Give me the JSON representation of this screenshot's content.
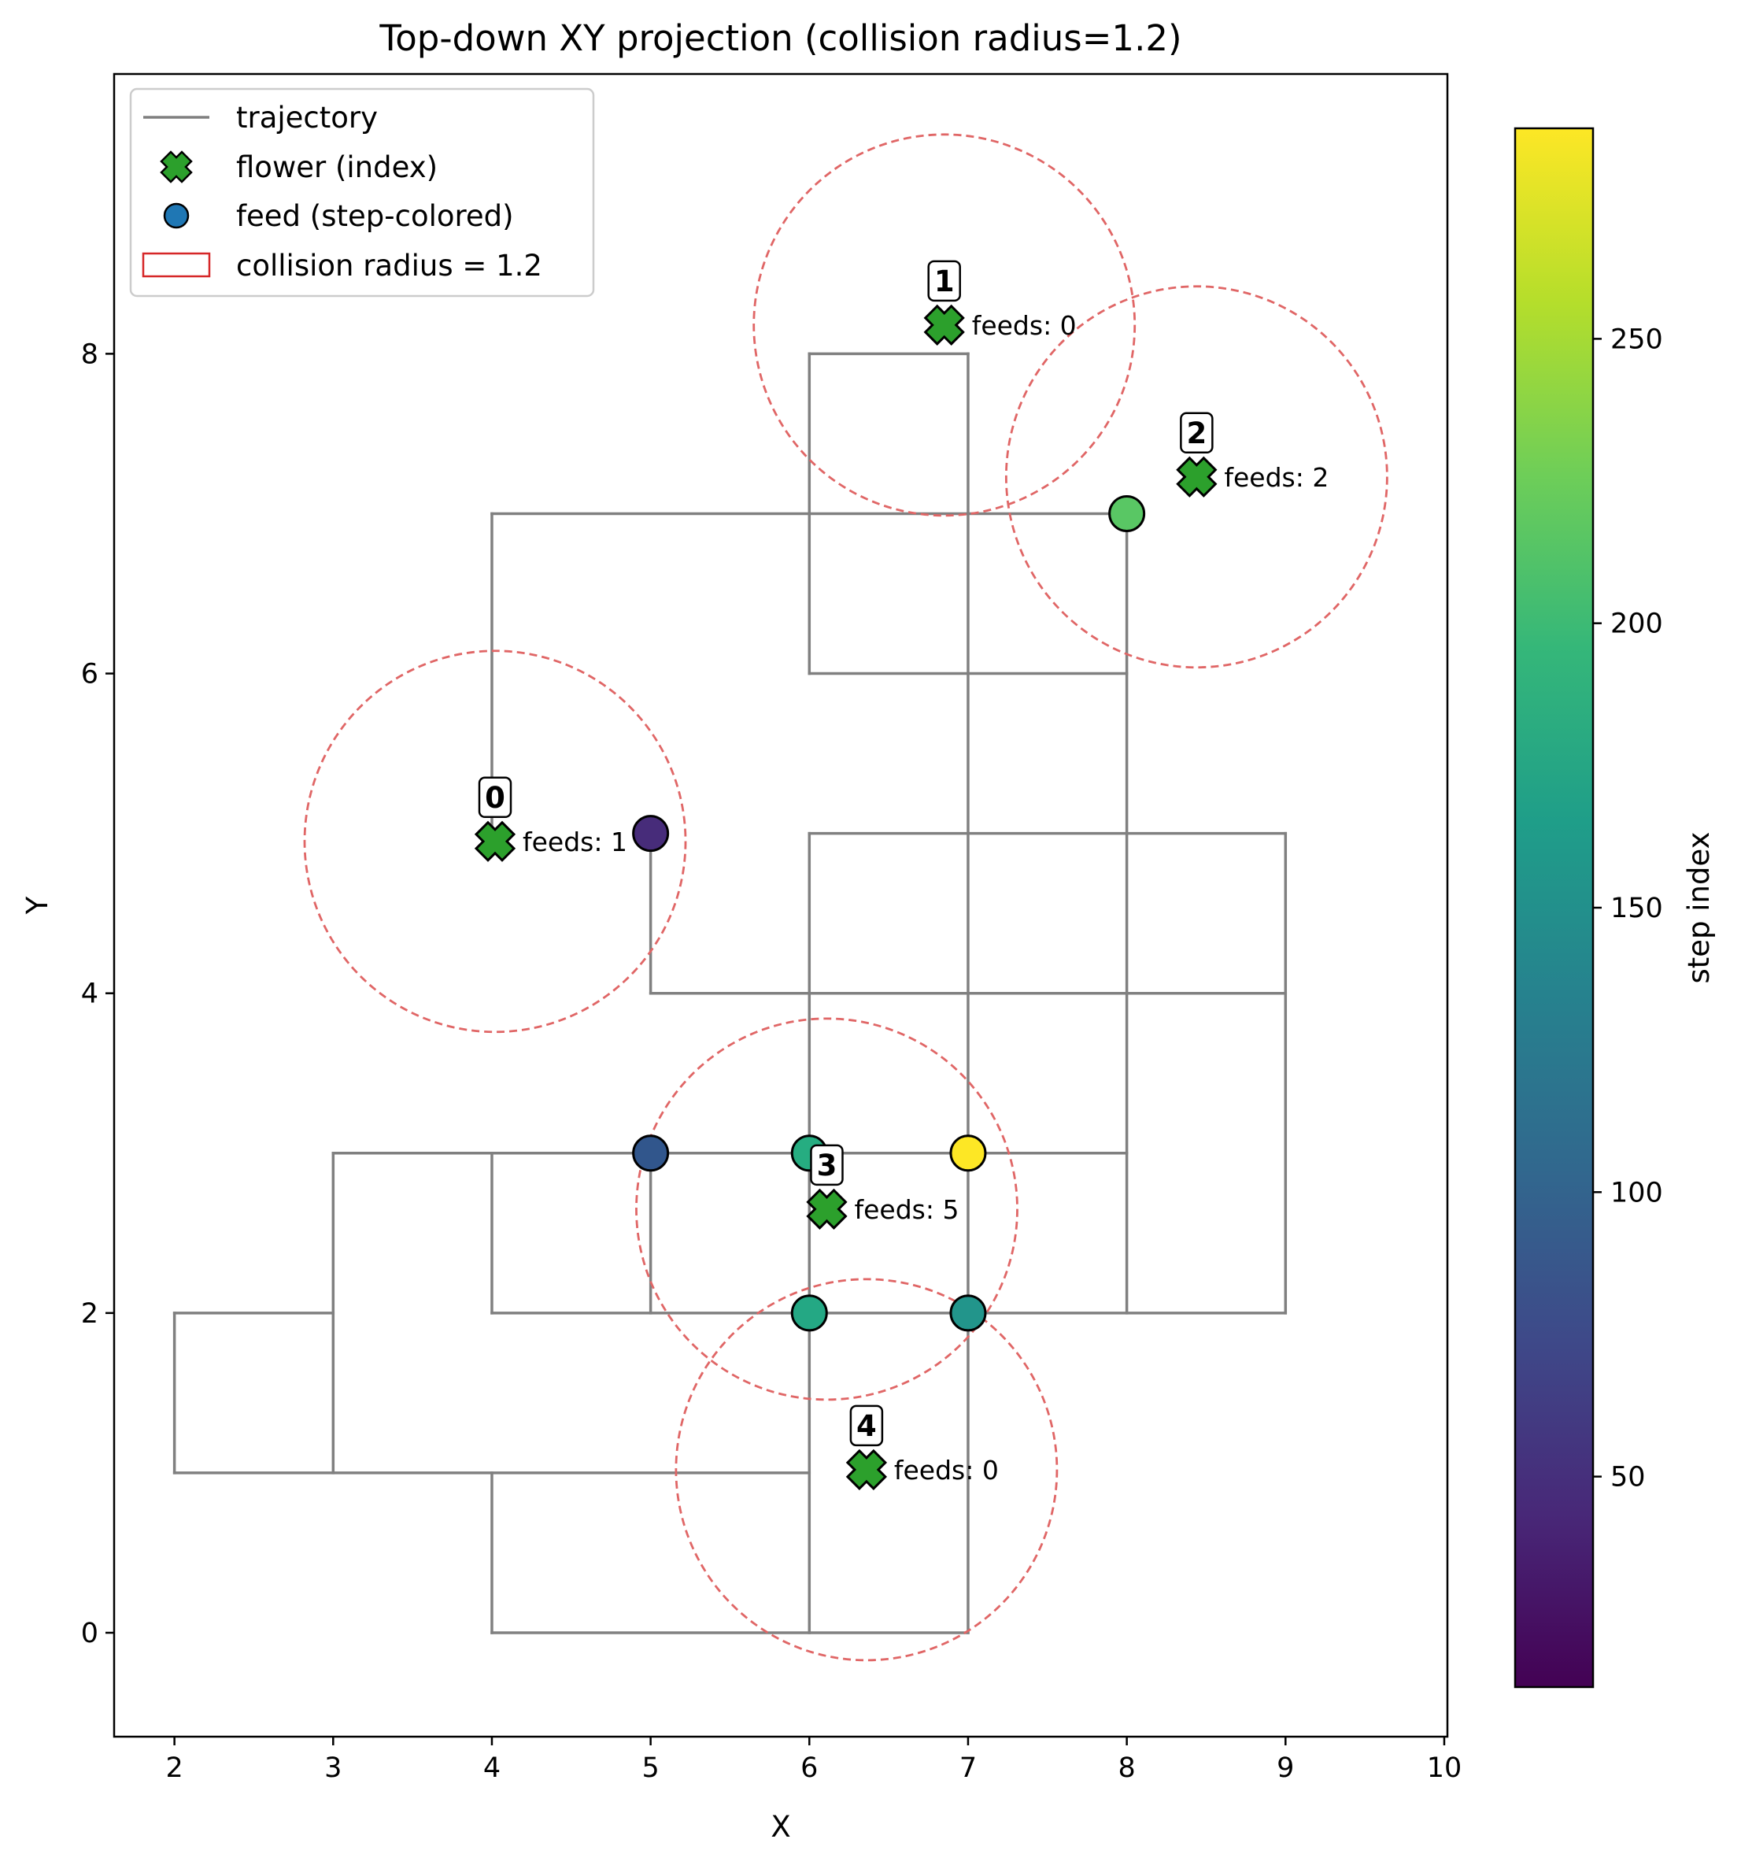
{
  "chart_data": {
    "type": "scatter",
    "title": "Top-down XY projection (collision radius=1.2)",
    "xlabel": "X",
    "ylabel": "Y",
    "xlim": [
      1.62,
      10.02
    ],
    "ylim": [
      -0.65,
      9.75
    ],
    "xticks": [
      2,
      3,
      4,
      5,
      6,
      7,
      8,
      9,
      10
    ],
    "yticks": [
      0,
      2,
      4,
      6,
      8
    ],
    "grid": false,
    "legend_placement": "upper-left",
    "legend": [
      {
        "key": "trajectory",
        "label": "trajectory",
        "color": "#808080"
      },
      {
        "key": "flower",
        "label": "flower (index)",
        "color": "#2ca02c"
      },
      {
        "key": "feed",
        "label": "feed (step-colored)",
        "color": "#1f77b4"
      },
      {
        "key": "collision",
        "label": "collision radius = 1.2",
        "color": "#d62728"
      }
    ],
    "collision_radius": 1.2,
    "colors": {
      "trajectory": "#808080",
      "flower": "#2ca02c",
      "circle": "#e06666",
      "legend_circle": "#d62728"
    },
    "trajectory_segments": [
      [
        [
          4,
          5
        ],
        [
          4,
          7
        ]
      ],
      [
        [
          4,
          7
        ],
        [
          8,
          7
        ]
      ],
      [
        [
          8,
          7
        ],
        [
          8,
          2
        ]
      ],
      [
        [
          6,
          8
        ],
        [
          7,
          8
        ]
      ],
      [
        [
          6,
          8
        ],
        [
          6,
          6
        ]
      ],
      [
        [
          7,
          8
        ],
        [
          7,
          0
        ]
      ],
      [
        [
          6,
          6
        ],
        [
          8,
          6
        ]
      ],
      [
        [
          5,
          5
        ],
        [
          5,
          4
        ]
      ],
      [
        [
          5,
          4
        ],
        [
          9,
          4
        ]
      ],
      [
        [
          6,
          5
        ],
        [
          9,
          5
        ]
      ],
      [
        [
          9,
          5
        ],
        [
          9,
          2
        ]
      ],
      [
        [
          6,
          5
        ],
        [
          6,
          0
        ]
      ],
      [
        [
          3,
          3
        ],
        [
          8,
          3
        ]
      ],
      [
        [
          3,
          3
        ],
        [
          3,
          1
        ]
      ],
      [
        [
          2,
          2
        ],
        [
          3,
          2
        ]
      ],
      [
        [
          2,
          2
        ],
        [
          2,
          1
        ]
      ],
      [
        [
          2,
          1
        ],
        [
          6,
          1
        ]
      ],
      [
        [
          4,
          3
        ],
        [
          4,
          2
        ]
      ],
      [
        [
          5,
          3
        ],
        [
          5,
          2
        ]
      ],
      [
        [
          4,
          2
        ],
        [
          9,
          2
        ]
      ],
      [
        [
          4,
          1
        ],
        [
          4,
          0
        ]
      ],
      [
        [
          4,
          0
        ],
        [
          7,
          0
        ]
      ]
    ],
    "flowers": [
      {
        "index": "0",
        "x": 4.02,
        "y": 4.95,
        "feeds_label": "feeds: 1"
      },
      {
        "index": "1",
        "x": 6.85,
        "y": 8.18,
        "feeds_label": "feeds: 0"
      },
      {
        "index": "2",
        "x": 8.44,
        "y": 7.23,
        "feeds_label": "feeds: 2"
      },
      {
        "index": "3",
        "x": 6.11,
        "y": 2.65,
        "feeds_label": "feeds: 5"
      },
      {
        "index": "4",
        "x": 6.36,
        "y": 1.02,
        "feeds_label": "feeds: 0"
      }
    ],
    "feeds": [
      {
        "x": 5,
        "y": 5,
        "step": 45,
        "color": "#472c7a"
      },
      {
        "x": 5,
        "y": 3,
        "step": 95,
        "color": "#31568c"
      },
      {
        "x": 7,
        "y": 2,
        "step": 165,
        "color": "#22958b"
      },
      {
        "x": 6,
        "y": 2,
        "step": 180,
        "color": "#24a884"
      },
      {
        "x": 6,
        "y": 3,
        "step": 185,
        "color": "#26ad81"
      },
      {
        "x": 8,
        "y": 7,
        "step": 225,
        "color": "#59c764"
      },
      {
        "x": 7,
        "y": 3,
        "step": 285,
        "color": "#fde725"
      }
    ],
    "colorbar": {
      "label": "step index",
      "min": 13,
      "max": 287,
      "ticks": [
        50,
        100,
        150,
        200,
        250
      ],
      "colormap": "viridis",
      "stops": [
        "#440154",
        "#482878",
        "#3e4989",
        "#31688e",
        "#26828e",
        "#1f9e89",
        "#35b779",
        "#6ece58",
        "#b5de2b",
        "#fde725"
      ]
    }
  }
}
